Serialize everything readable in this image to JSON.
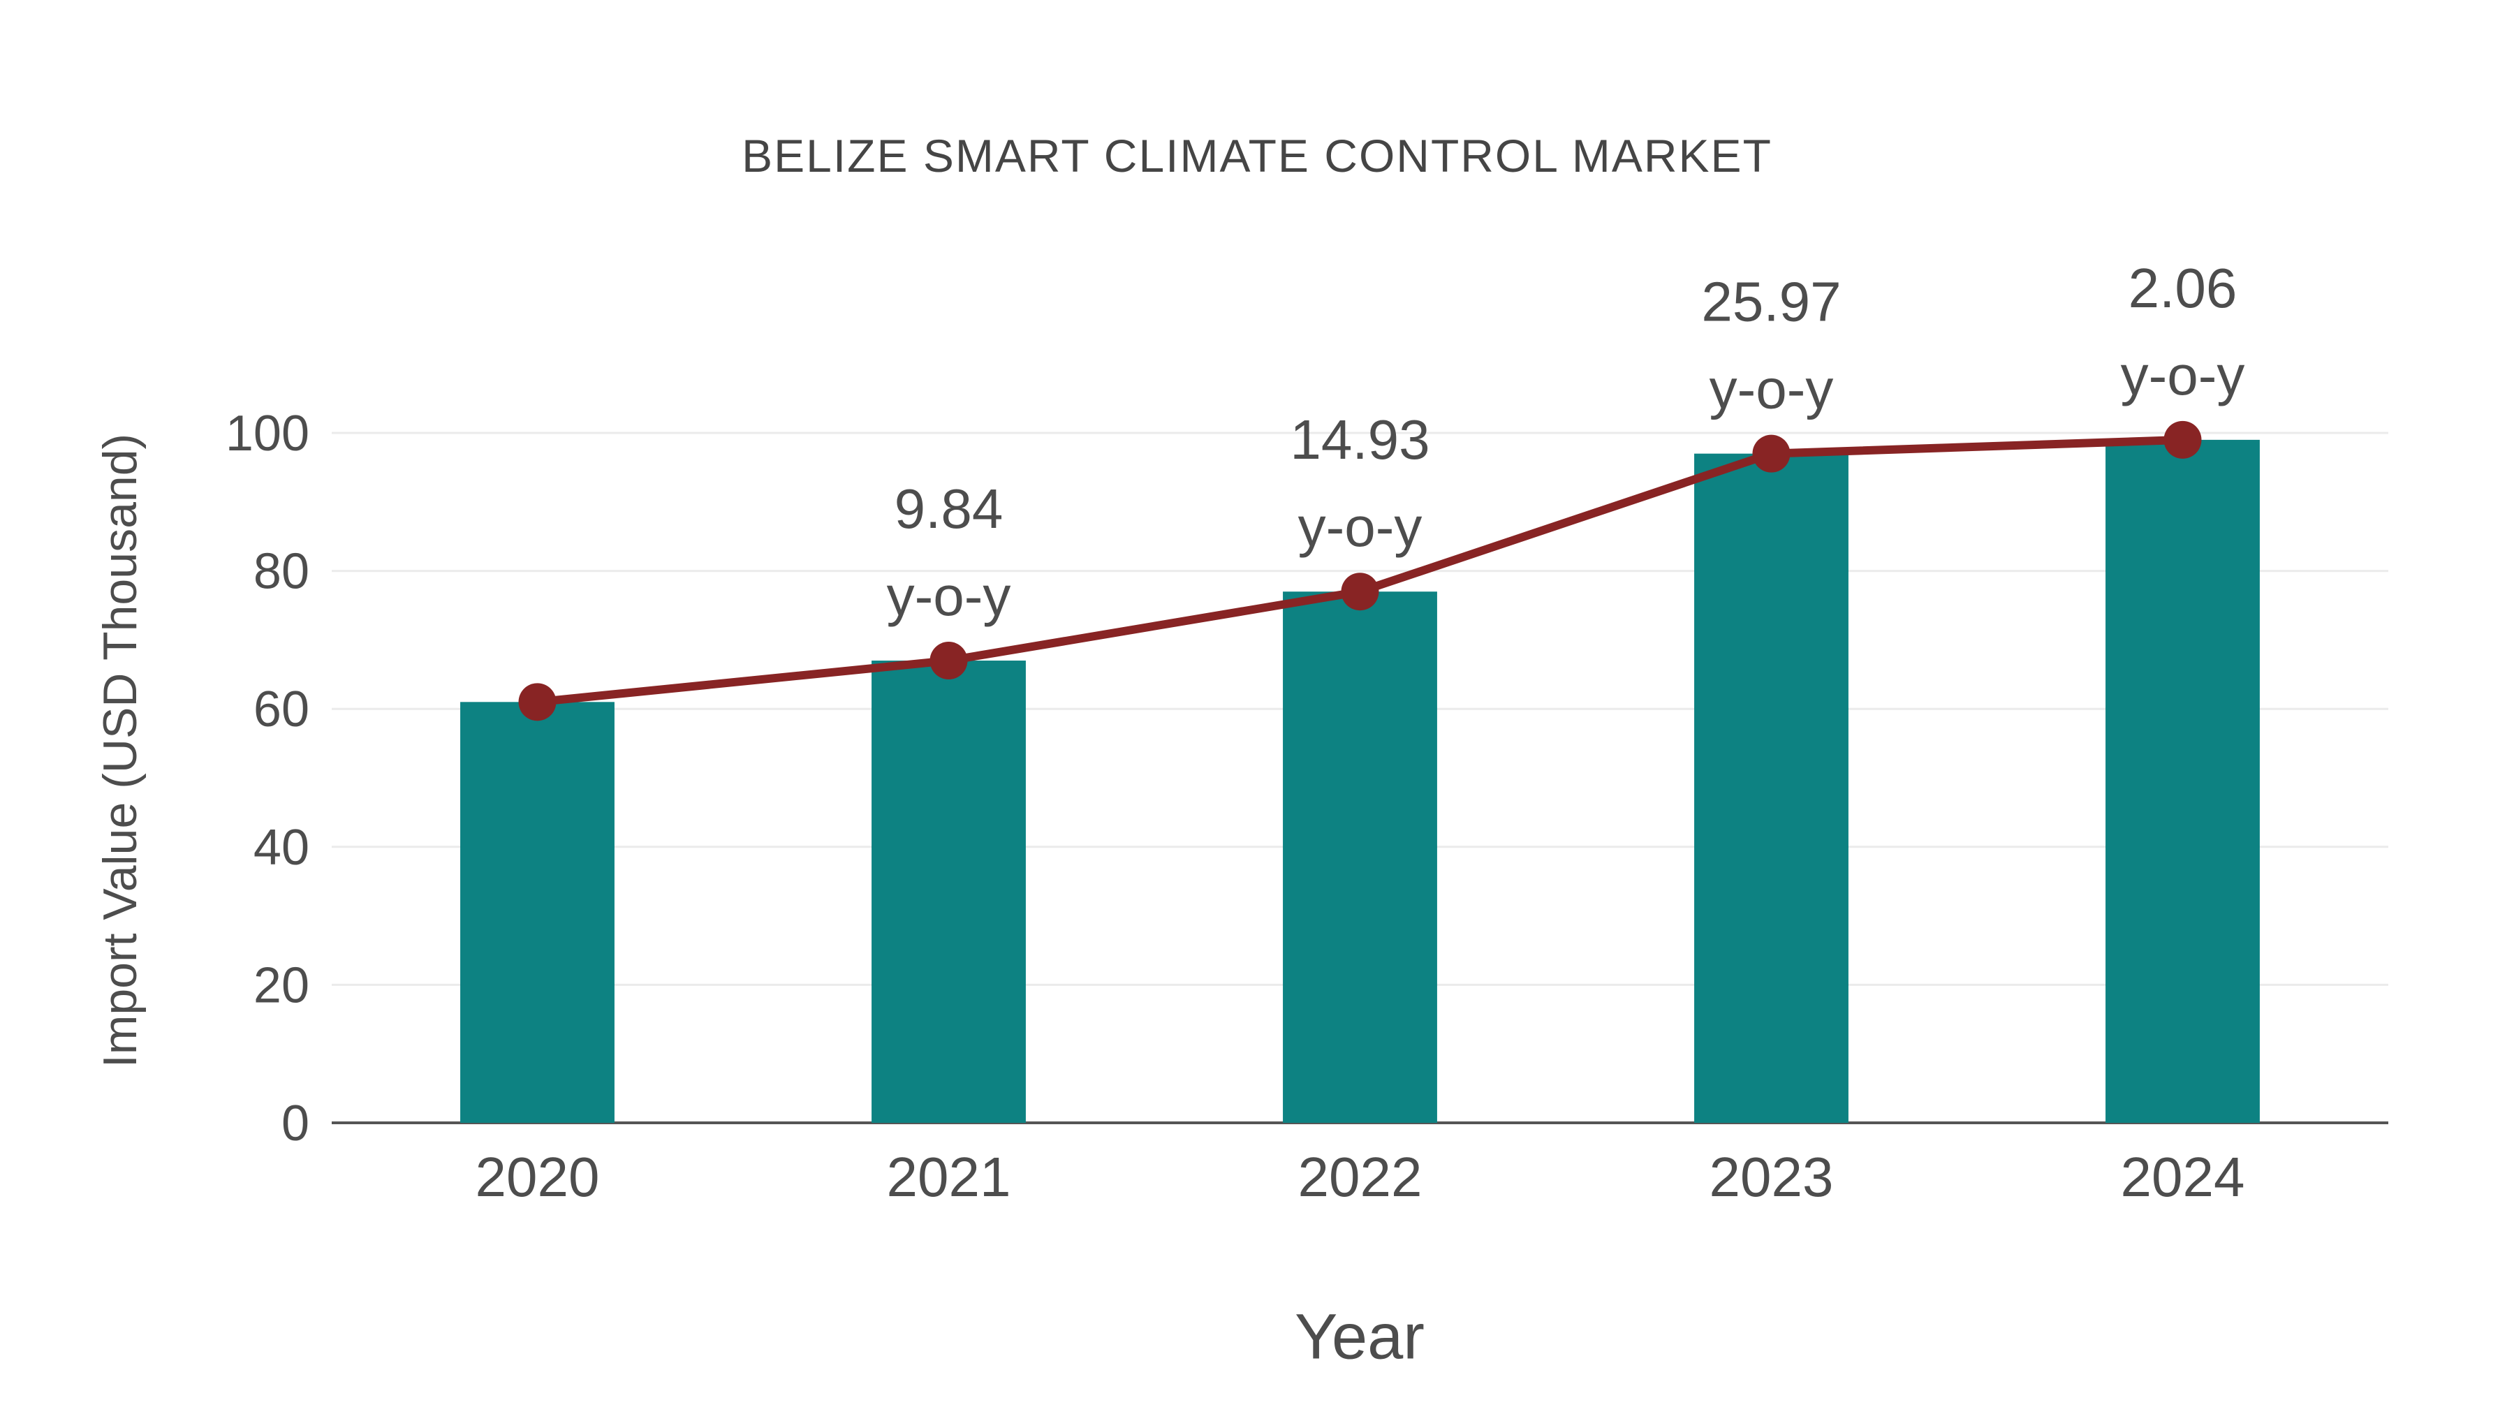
{
  "chart_data": {
    "type": "bar",
    "title": "BELIZE SMART CLIMATE CONTROL MARKET",
    "xlabel": "Year",
    "ylabel": "Import Value (USD Thousand)",
    "categories": [
      "2020",
      "2021",
      "2022",
      "2023",
      "2024"
    ],
    "series": [
      {
        "name": "import-value-bars",
        "type": "bar",
        "values": [
          61,
          67,
          77,
          97,
          99
        ],
        "color": "#0d8282"
      },
      {
        "name": "trend-line",
        "type": "line",
        "values": [
          61,
          67,
          77,
          97,
          99
        ],
        "color": "#882424"
      }
    ],
    "annotations": [
      {
        "category": "2021",
        "lines": [
          "9.84",
          "y-o-y"
        ]
      },
      {
        "category": "2022",
        "lines": [
          "14.93",
          "y-o-y"
        ]
      },
      {
        "category": "2023",
        "lines": [
          "25.97",
          "y-o-y"
        ]
      },
      {
        "category": "2024",
        "lines": [
          "2.06",
          "y-o-y"
        ]
      }
    ],
    "yticks": [
      0,
      20,
      40,
      60,
      80,
      100
    ],
    "ylim": [
      0,
      100
    ],
    "grid": true,
    "legend_position": "none"
  },
  "colors": {
    "bar": "#0d8282",
    "line": "#882424",
    "gridline": "#ebebeb",
    "axis_line": "#555555",
    "tick_text": "#4d4d4d",
    "title_text": "#454545",
    "background": "#ffffff"
  }
}
